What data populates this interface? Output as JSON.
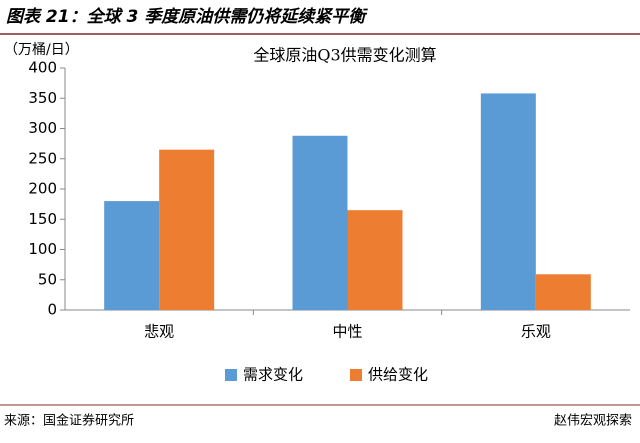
{
  "header": {
    "title": "图表 21：全球 3 季度原油供需仍将延续紧平衡"
  },
  "chart_data": {
    "type": "bar",
    "title": "全球原油Q3供需变化测算",
    "y_label": "（万桶/日）",
    "categories": [
      "悲观",
      "中性",
      "乐观"
    ],
    "series": [
      {
        "name": "需求变化",
        "color": "#5b9bd5",
        "values": [
          180,
          288,
          358
        ]
      },
      {
        "name": "供给变化",
        "color": "#ed7d31",
        "values": [
          265,
          165,
          59
        ]
      }
    ],
    "ylim": [
      0,
      400
    ],
    "yticks": [
      0,
      50,
      100,
      150,
      200,
      250,
      300,
      350,
      400
    ],
    "grid": false,
    "legend": "bottom"
  },
  "footer": {
    "source": "来源：国金证券研究所",
    "watermark": "赵伟宏观探索"
  }
}
